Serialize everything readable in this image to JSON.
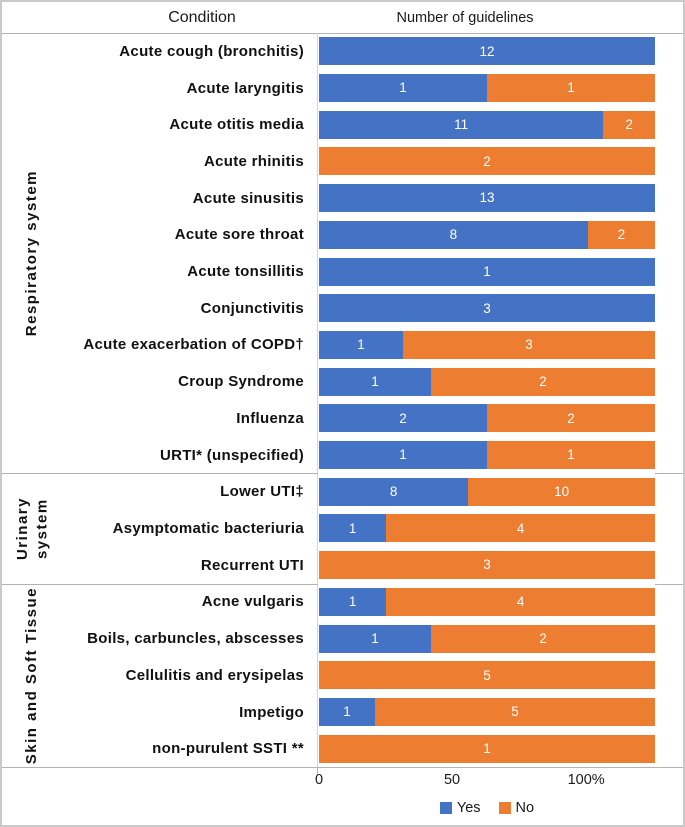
{
  "header": {
    "condition": "Condition",
    "guidelines": "Number of guidelines"
  },
  "axis": {
    "ticks": [
      "0",
      "50",
      "100%"
    ]
  },
  "legend": [
    {
      "label": "Yes",
      "color": "#4472C4"
    },
    {
      "label": "No",
      "color": "#ED7D31"
    }
  ],
  "colors": {
    "yes": "#4472C4",
    "no": "#ED7D31"
  },
  "chart_data": {
    "type": "bar",
    "orientation": "horizontal",
    "stacked": true,
    "percent_stacked": true,
    "title": "Number of guidelines",
    "categories": [
      "Acute cough (bronchitis)",
      "Acute laryngitis",
      "Acute otitis media",
      "Acute rhinitis",
      "Acute sinusitis",
      "Acute sore throat",
      "Acute tonsillitis",
      "Conjunctivitis",
      "Acute exacerbation of COPD†",
      "Croup Syndrome",
      "Influenza",
      "URTI* (unspecified)",
      "Lower UTI‡",
      "Asymptomatic bacteriuria",
      "Recurrent UTI",
      "Acne vulgaris",
      "Boils, carbuncles, abscesses",
      "Cellulitis and erysipelas",
      "Impetigo",
      "non-purulent SSTI **"
    ],
    "groups": [
      {
        "lines": [
          "Respiratory system"
        ],
        "count": 12
      },
      {
        "lines": [
          "Urinary",
          "system"
        ],
        "count": 3
      },
      {
        "lines": [
          "Skin and Soft Tissue"
        ],
        "count": 5
      }
    ],
    "series": [
      {
        "name": "Yes",
        "color": "#4472C4",
        "values": [
          12,
          1,
          11,
          0,
          13,
          8,
          1,
          3,
          1,
          1,
          2,
          1,
          8,
          1,
          0,
          1,
          1,
          0,
          1,
          0
        ]
      },
      {
        "name": "No",
        "color": "#ED7D31",
        "values": [
          0,
          1,
          2,
          2,
          0,
          2,
          0,
          0,
          3,
          2,
          2,
          1,
          10,
          4,
          3,
          4,
          2,
          5,
          5,
          1
        ]
      }
    ],
    "xticks": [
      "0",
      "50",
      "100%"
    ],
    "legend_position": "bottom",
    "grid": false
  }
}
